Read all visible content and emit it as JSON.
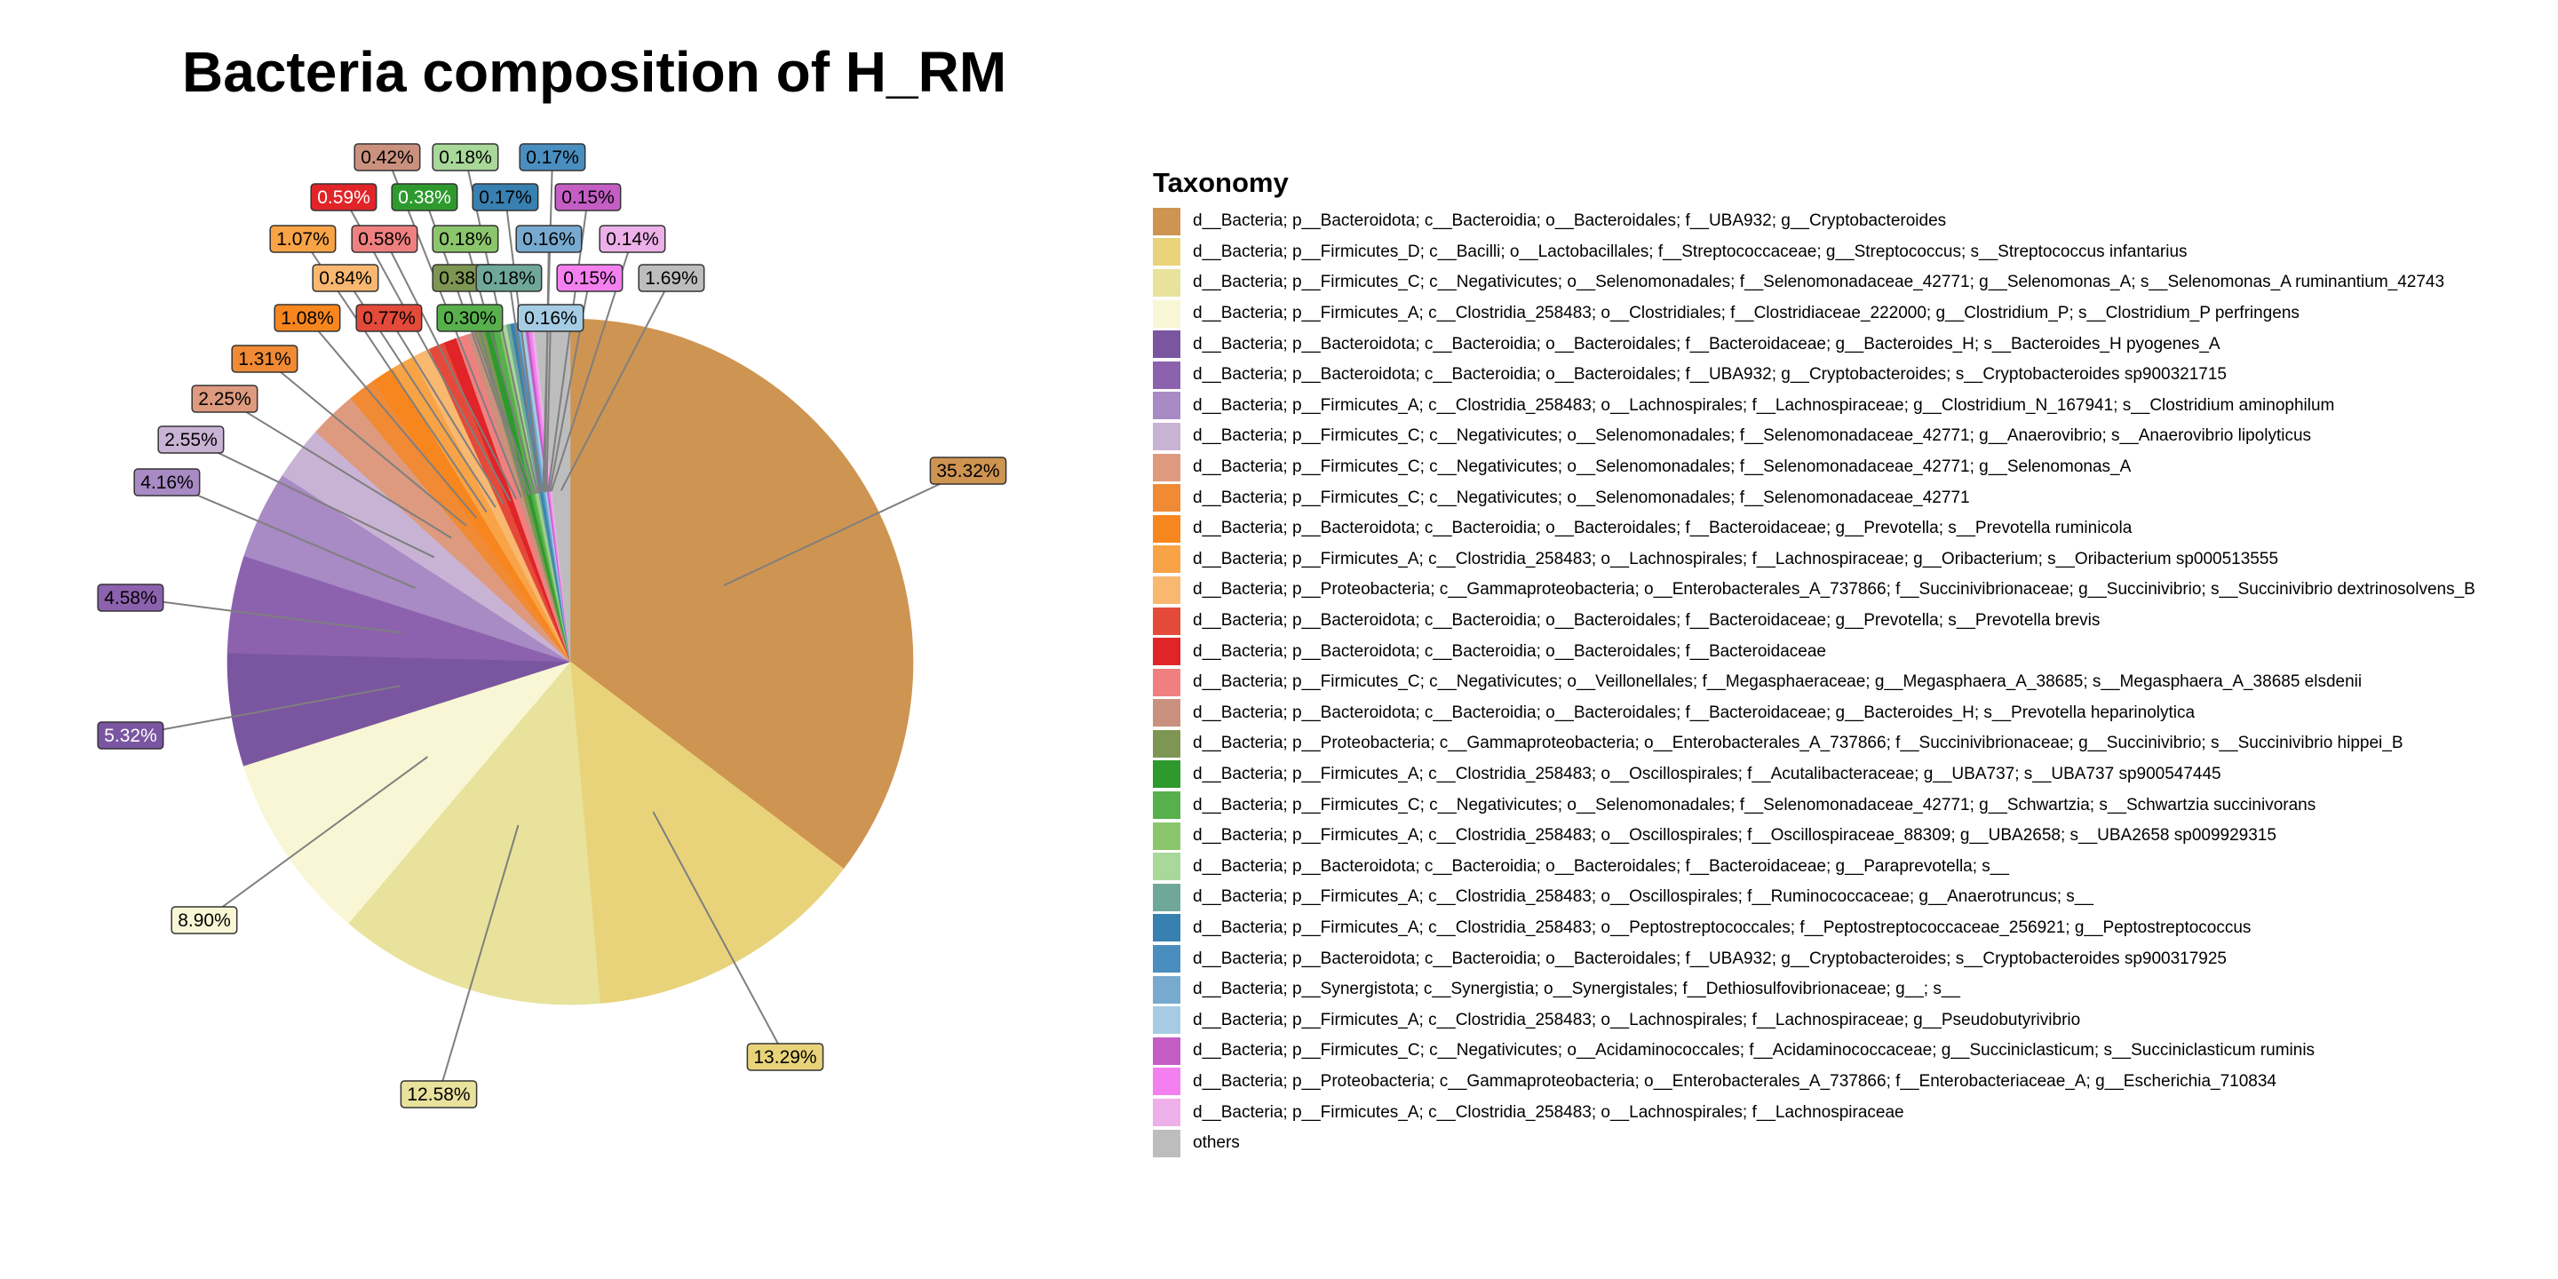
{
  "chart_data": {
    "type": "pie",
    "title": "Bacteria composition of H_RM",
    "legend_title": "Taxonomy",
    "legend_position": "right",
    "start": "top, clockwise",
    "slices": [
      {
        "label": "d__Bacteria; p__Bacteroidota; c__Bacteroidia; o__Bacteroidales; f__UBA932; g__Cryptobacteroides",
        "value": 35.32,
        "value_label": "35.32%",
        "color": "#CE9451"
      },
      {
        "label": "d__Bacteria; p__Firmicutes_D; c__Bacilli; o__Lactobacillales; f__Streptococcaceae; g__Streptococcus; s__Streptococcus infantarius",
        "value": 13.29,
        "value_label": "13.29%",
        "color": "#E8D37A"
      },
      {
        "label": "d__Bacteria; p__Firmicutes_C; c__Negativicutes; o__Selenomonadales; f__Selenomonadaceae_42771; g__Selenomonas_A; s__Selenomonas_A ruminantium_42743",
        "value": 12.58,
        "value_label": "12.58%",
        "color": "#E8E29C"
      },
      {
        "label": "d__Bacteria; p__Firmicutes_A; c__Clostridia_258483; o__Clostridiales; f__Clostridiaceae_222000; g__Clostridium_P; s__Clostridium_P perfringens",
        "value": 8.9,
        "value_label": "8.90%",
        "color": "#F8F6D4"
      },
      {
        "label": "d__Bacteria; p__Bacteroidota; c__Bacteroidia; o__Bacteroidales; f__Bacteroidaceae; g__Bacteroides_H; s__Bacteroides_H pyogenes_A",
        "value": 5.32,
        "value_label": "5.32%",
        "color": "#7A55A0"
      },
      {
        "label": "d__Bacteria; p__Bacteroidota; c__Bacteroidia; o__Bacteroidales; f__UBA932; g__Cryptobacteroides; s__Cryptobacteroides sp900321715",
        "value": 4.58,
        "value_label": "4.58%",
        "color": "#8C62AE"
      },
      {
        "label": "d__Bacteria; p__Firmicutes_A; c__Clostridia_258483; o__Lachnospirales; f__Lachnospiraceae; g__Clostridium_N_167941; s__Clostridium aminophilum",
        "value": 4.16,
        "value_label": "4.16%",
        "color": "#A88AC4"
      },
      {
        "label": "d__Bacteria; p__Firmicutes_C; c__Negativicutes; o__Selenomonadales; f__Selenomonadaceae_42771; g__Anaerovibrio; s__Anaerovibrio lipolyticus",
        "value": 2.55,
        "value_label": "2.55%",
        "color": "#C9B3D4"
      },
      {
        "label": "d__Bacteria; p__Firmicutes_C; c__Negativicutes; o__Selenomonadales; f__Selenomonadaceae_42771; g__Selenomonas_A",
        "value": 2.25,
        "value_label": "2.25%",
        "color": "#DE9A7E"
      },
      {
        "label": "d__Bacteria; p__Firmicutes_C; c__Negativicutes; o__Selenomonadales; f__Selenomonadaceae_42771",
        "value": 1.31,
        "value_label": "1.31%",
        "color": "#F08A35"
      },
      {
        "label": "d__Bacteria; p__Bacteroidota; c__Bacteroidia; o__Bacteroidales; f__Bacteroidaceae; g__Prevotella; s__Prevotella ruminicola",
        "value": 1.08,
        "value_label": "1.08%",
        "color": "#F7861E"
      },
      {
        "label": "d__Bacteria; p__Firmicutes_A; c__Clostridia_258483; o__Lachnospirales; f__Lachnospiraceae; g__Oribacterium; s__Oribacterium sp000513555",
        "value": 1.07,
        "value_label": "1.07%",
        "color": "#F8A346"
      },
      {
        "label": "d__Bacteria; p__Proteobacteria; c__Gammaproteobacteria; o__Enterobacterales_A_737866; f__Succinivibrionaceae; g__Succinivibrio; s__Succinivibrio dextrinosolvens_B",
        "value": 0.84,
        "value_label": "0.84%",
        "color": "#F8B870"
      },
      {
        "label": "d__Bacteria; p__Bacteroidota; c__Bacteroidia; o__Bacteroidales; f__Bacteroidaceae; g__Prevotella; s__Prevotella brevis",
        "value": 0.77,
        "value_label": "0.77%",
        "color": "#E44A3A"
      },
      {
        "label": "d__Bacteria; p__Bacteroidota; c__Bacteroidia; o__Bacteroidales; f__Bacteroidaceae",
        "value": 0.59,
        "value_label": "0.59%",
        "color": "#E02428"
      },
      {
        "label": "d__Bacteria; p__Firmicutes_C; c__Negativicutes; o__Veillonellales; f__Megasphaeraceae; g__Megasphaera_A_38685; s__Megasphaera_A_38685 elsdenii",
        "value": 0.58,
        "value_label": "0.58%",
        "color": "#F08080"
      },
      {
        "label": "d__Bacteria; p__Bacteroidota; c__Bacteroidia; o__Bacteroidales; f__Bacteroidaceae; g__Bacteroides_H; s__Prevotella heparinolytica",
        "value": 0.42,
        "value_label": "0.42%",
        "color": "#C9917E"
      },
      {
        "label": "d__Bacteria; p__Proteobacteria; c__Gammaproteobacteria; o__Enterobacterales_A_737866; f__Succinivibrionaceae; g__Succinivibrio; s__Succinivibrio hippei_B",
        "value": 0.38,
        "value_label": "0.38%",
        "color": "#7E9653"
      },
      {
        "label": "d__Bacteria; p__Firmicutes_A; c__Clostridia_258483; o__Oscillospirales; f__Acutalibacteraceae; g__UBA737; s__UBA737 sp900547445",
        "value": 0.38,
        "value_label": "0.38%",
        "color": "#2E9A2E"
      },
      {
        "label": "d__Bacteria; p__Firmicutes_C; c__Negativicutes; o__Selenomonadales; f__Selenomonadaceae_42771; g__Schwartzia; s__Schwartzia succinivorans",
        "value": 0.3,
        "value_label": "0.30%",
        "color": "#58B04C"
      },
      {
        "label": "d__Bacteria; p__Firmicutes_A; c__Clostridia_258483; o__Oscillospirales; f__Oscillospiraceae_88309; g__UBA2658; s__UBA2658 sp009929315",
        "value": 0.18,
        "value_label": "0.18%",
        "color": "#8CC66C"
      },
      {
        "label": "d__Bacteria; p__Bacteroidota; c__Bacteroidia; o__Bacteroidales; f__Bacteroidaceae; g__Paraprevotella; s__",
        "value": 0.18,
        "value_label": "0.18%",
        "color": "#A8D89A"
      },
      {
        "label": "d__Bacteria; p__Firmicutes_A; c__Clostridia_258483; o__Oscillospirales; f__Ruminococcaceae; g__Anaerotruncus; s__",
        "value": 0.18,
        "value_label": "0.18%",
        "color": "#6FA898"
      },
      {
        "label": "d__Bacteria; p__Firmicutes_A; c__Clostridia_258483; o__Peptostreptococcales; f__Peptostreptococcaceae_256921; g__Peptostreptococcus",
        "value": 0.17,
        "value_label": "0.17%",
        "color": "#3880B0"
      },
      {
        "label": "d__Bacteria; p__Bacteroidota; c__Bacteroidia; o__Bacteroidales; f__UBA932; g__Cryptobacteroides; s__Cryptobacteroides sp900317925",
        "value": 0.17,
        "value_label": "0.17%",
        "color": "#4A8EC0"
      },
      {
        "label": "d__Bacteria; p__Synergistota; c__Synergistia; o__Synergistales; f__Dethiosulfovibrionaceae; g__; s__",
        "value": 0.16,
        "value_label": "0.16%",
        "color": "#78AAD0"
      },
      {
        "label": "d__Bacteria; p__Firmicutes_A; c__Clostridia_258483; o__Lachnospirales; f__Lachnospiraceae; g__Pseudobutyrivibrio",
        "value": 0.16,
        "value_label": "0.16%",
        "color": "#A6CCE4"
      },
      {
        "label": "d__Bacteria; p__Firmicutes_C; c__Negativicutes; o__Acidaminococcales; f__Acidaminococcaceae; g__Succiniclasticum; s__Succiniclasticum ruminis",
        "value": 0.15,
        "value_label": "0.15%",
        "color": "#C45EC4"
      },
      {
        "label": "d__Bacteria; p__Proteobacteria; c__Gammaproteobacteria; o__Enterobacterales_A_737866; f__Enterobacteriaceae_A; g__Escherichia_710834",
        "value": 0.15,
        "value_label": "0.15%",
        "color": "#F480F0"
      },
      {
        "label": "d__Bacteria; p__Firmicutes_A; c__Clostridia_258483; o__Lachnospirales; f__Lachnospiraceae",
        "value": 0.14,
        "value_label": "0.14%",
        "color": "#EDB0E8"
      },
      {
        "label": "others",
        "value": 1.69,
        "value_label": "1.69%",
        "color": "#BDBDBD"
      }
    ]
  }
}
